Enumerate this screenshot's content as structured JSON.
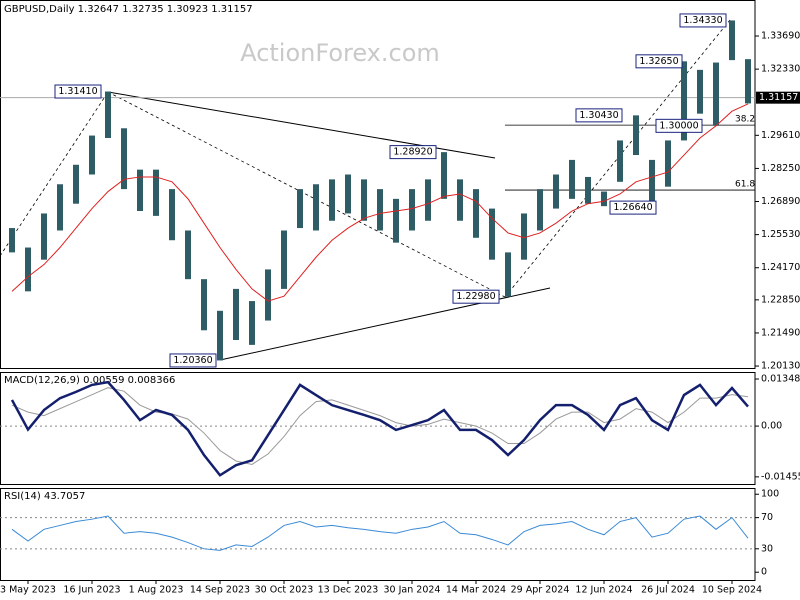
{
  "chart_data": [
    {
      "type": "range-bar",
      "title": "GBPUSD,Daily 1.32647 1.32735 1.30923 1.31157",
      "watermark": "ActionForex.com",
      "bar_color": "#2f5d66",
      "ma_color": "#e02020",
      "high": [
        1.258,
        1.25,
        1.264,
        1.276,
        1.284,
        1.296,
        1.3141,
        1.299,
        1.282,
        1.282,
        1.274,
        1.257,
        1.237,
        1.224,
        1.233,
        1.228,
        1.241,
        1.257,
        1.274,
        1.276,
        1.278,
        1.28,
        1.278,
        1.274,
        1.27,
        1.274,
        1.278,
        1.2892,
        1.278,
        1.274,
        1.266,
        1.248,
        1.264,
        1.274,
        1.28,
        1.286,
        1.279,
        1.273,
        1.294,
        1.3043,
        1.286,
        1.294,
        1.3265,
        1.323,
        1.326,
        1.3433,
        1.3274
      ],
      "low": [
        1.248,
        1.232,
        1.245,
        1.257,
        1.268,
        1.28,
        1.295,
        1.274,
        1.265,
        1.263,
        1.253,
        1.237,
        1.216,
        1.2036,
        1.212,
        1.21,
        1.22,
        1.233,
        1.258,
        1.257,
        1.261,
        1.264,
        1.261,
        1.257,
        1.252,
        1.257,
        1.261,
        1.27,
        1.261,
        1.254,
        1.245,
        1.2298,
        1.245,
        1.257,
        1.266,
        1.27,
        1.268,
        1.267,
        1.277,
        1.288,
        1.2664,
        1.275,
        1.294,
        1.305,
        1.3,
        1.327,
        1.3092
      ],
      "ma": [
        1.232,
        1.238,
        1.243,
        1.25,
        1.258,
        1.266,
        1.273,
        1.278,
        1.279,
        1.279,
        1.277,
        1.27,
        1.26,
        1.25,
        1.241,
        1.233,
        1.228,
        1.23,
        1.238,
        1.246,
        1.253,
        1.258,
        1.262,
        1.264,
        1.265,
        1.266,
        1.268,
        1.271,
        1.272,
        1.269,
        1.262,
        1.256,
        1.254,
        1.256,
        1.26,
        1.265,
        1.268,
        1.269,
        1.272,
        1.277,
        1.279,
        1.281,
        1.288,
        1.295,
        1.3,
        1.306,
        1.309
      ],
      "ylim": [
        1.2005,
        1.3517
      ],
      "yticks": [
        {
          "value": 1.3369,
          "label": "1.33690"
        },
        {
          "value": 1.3233,
          "label": "1.32330"
        },
        {
          "value": 1.2961,
          "label": "1.29610"
        },
        {
          "value": 1.2825,
          "label": "1.28250"
        },
        {
          "value": 1.2689,
          "label": "1.26890"
        },
        {
          "value": 1.2553,
          "label": "1.25530"
        },
        {
          "value": 1.2417,
          "label": "1.24170"
        },
        {
          "value": 1.2285,
          "label": "1.22850"
        },
        {
          "value": 1.2149,
          "label": "1.21490"
        },
        {
          "value": 1.2013,
          "label": "1.20130"
        }
      ],
      "last_price": {
        "value": 1.31157,
        "label": "1.31157"
      },
      "annotations": [
        {
          "value": 1.3141,
          "label": "1.31410"
        },
        {
          "value": 1.2892,
          "label": "1.28920"
        },
        {
          "value": 1.2298,
          "label": "1.22980"
        },
        {
          "value": 1.2036,
          "label": "1.20360"
        },
        {
          "value": 1.2664,
          "label": "1.26640"
        },
        {
          "value": 1.3043,
          "label": "1.30430"
        },
        {
          "value": 1.3,
          "label": "1.30000"
        },
        {
          "value": 1.3265,
          "label": "1.32650"
        },
        {
          "value": 1.3433,
          "label": "1.34330"
        }
      ],
      "fibs": [
        {
          "ratio": 38.2,
          "price": 1.3003
        },
        {
          "ratio": 61.8,
          "price": 1.2736
        }
      ]
    },
    {
      "type": "line",
      "title": "MACD(12,26,9) 0.00559 0.008366",
      "macd_color": "#14206e",
      "signal_color": "#9a9a9a",
      "macd": [
        0.0075,
        -0.001,
        0.0046,
        0.008,
        0.0098,
        0.0118,
        0.0126,
        0.0075,
        0.0017,
        0.0046,
        0.0032,
        -0.0011,
        -0.0083,
        -0.0141,
        -0.0112,
        -0.0098,
        -0.0026,
        0.0046,
        0.0118,
        0.0089,
        0.006,
        0.0046,
        0.0032,
        0.0017,
        -0.0011,
        0.0003,
        0.0017,
        0.0046,
        -0.0011,
        -0.0011,
        -0.004,
        -0.0083,
        -0.004,
        0.0017,
        0.006,
        0.006,
        0.0032,
        -0.0011,
        0.006,
        0.008,
        0.0017,
        -0.0011,
        0.0089,
        0.0118,
        0.006,
        0.0109,
        0.0056
      ],
      "signal": [
        0.006,
        0.004,
        0.003,
        0.005,
        0.007,
        0.009,
        0.011,
        0.01,
        0.006,
        0.004,
        0.0035,
        0.002,
        -0.002,
        -0.007,
        -0.01,
        -0.011,
        -0.008,
        -0.003,
        0.003,
        0.007,
        0.0075,
        0.006,
        0.0045,
        0.003,
        0.001,
        0.0,
        0.0005,
        0.002,
        0.001,
        0.0,
        -0.002,
        -0.005,
        -0.005,
        -0.002,
        0.002,
        0.004,
        0.004,
        0.001,
        0.002,
        0.005,
        0.004,
        0.001,
        0.004,
        0.008,
        0.008,
        0.009,
        0.0084
      ],
      "ylim": [
        -0.0166,
        0.0155
      ],
      "yticks": [
        0.013489,
        {
          "value": 0,
          "label": "0.00"
        },
        -0.014554
      ]
    },
    {
      "type": "line",
      "title": "RSI(14) 43.7057",
      "rsi_color": "#3a8ad6",
      "categories": [
        null,
        "3 May 2023",
        null,
        null,
        null,
        "16 Jun 2023",
        null,
        null,
        null,
        "1 Aug 2023",
        null,
        null,
        null,
        "14 Sep 2023",
        null,
        null,
        null,
        "30 Oct 2023",
        null,
        null,
        null,
        "13 Dec 2023",
        null,
        null,
        null,
        "30 Jan 2024",
        null,
        null,
        null,
        "14 Mar 2024",
        null,
        null,
        null,
        "29 Apr 2024",
        null,
        null,
        null,
        "12 Jun 2024",
        null,
        null,
        null,
        "26 Jul 2024",
        null,
        null,
        null,
        "10 Sep 2024",
        null
      ],
      "rsi": [
        55,
        40,
        55,
        60,
        65,
        68,
        72,
        50,
        52,
        50,
        45,
        38,
        30,
        28,
        35,
        33,
        45,
        60,
        65,
        58,
        60,
        57,
        55,
        52,
        50,
        55,
        58,
        65,
        50,
        48,
        42,
        35,
        52,
        60,
        62,
        65,
        55,
        48,
        65,
        70,
        45,
        50,
        68,
        72,
        55,
        70,
        43.7
      ],
      "ylim": [
        -10,
        108
      ],
      "yticks": [
        100,
        70,
        30,
        0
      ]
    }
  ]
}
